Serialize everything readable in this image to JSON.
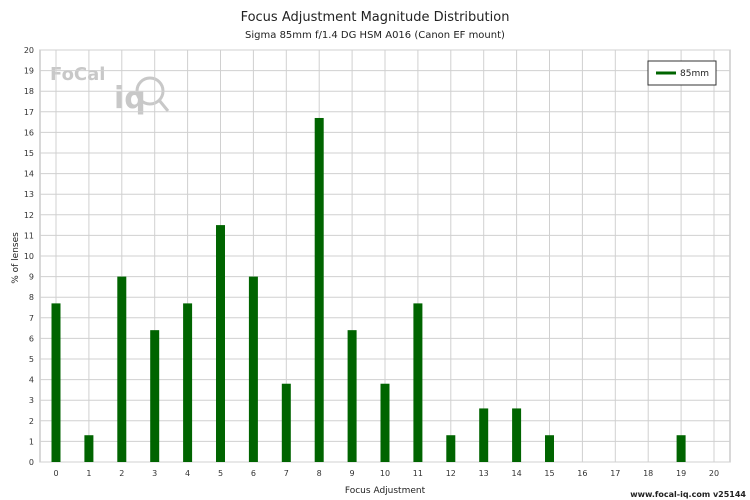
{
  "chart_data": {
    "type": "bar",
    "title": "Focus Adjustment Magnitude Distribution",
    "subtitle": "Sigma 85mm f/1.4 DG HSM A016 (Canon EF mount)",
    "xlabel": "Focus Adjustment",
    "ylabel": "% of lenses",
    "xlim": [
      0,
      20
    ],
    "ylim": [
      0,
      20
    ],
    "x_ticks": [
      "0",
      "1",
      "2",
      "3",
      "4",
      "5",
      "6",
      "7",
      "8",
      "9",
      "10",
      "11",
      "12",
      "13",
      "14",
      "15",
      "16",
      "17",
      "18",
      "19",
      "20"
    ],
    "y_ticks": [
      "0",
      "1",
      "2",
      "3",
      "4",
      "5",
      "6",
      "7",
      "8",
      "9",
      "10",
      "11",
      "12",
      "13",
      "14",
      "15",
      "16",
      "17",
      "18",
      "19",
      "20"
    ],
    "grid": true,
    "legend_position": "top-right",
    "series": [
      {
        "name": "85mm",
        "color": "#006400",
        "x": [
          0,
          1,
          2,
          3,
          4,
          5,
          6,
          7,
          8,
          9,
          10,
          11,
          12,
          13,
          14,
          15,
          19
        ],
        "values": [
          7.7,
          1.3,
          9.0,
          6.4,
          7.7,
          11.5,
          9.0,
          3.8,
          16.7,
          6.4,
          3.8,
          7.7,
          1.3,
          2.6,
          2.6,
          1.3,
          1.3
        ]
      }
    ]
  },
  "footer": "www.focal-iq.com  v25144",
  "logo": {
    "text_top": "FoCal",
    "text_bottom": "iq"
  }
}
